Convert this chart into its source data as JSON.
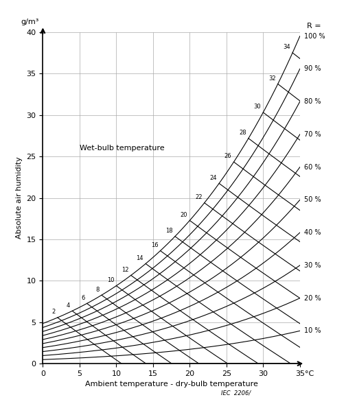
{
  "title": "",
  "xlabel": "Ambient temperature - dry-bulb temperature",
  "ylabel": "Absolute air humidity",
  "yunits": "g/m³",
  "xunits": "°C",
  "R_label": "R =",
  "wetbulb_label": "Wet-bulb temperature",
  "source": "IEC  2206/",
  "xmin": 0,
  "xmax": 35,
  "ymin": 0,
  "ymax": 40,
  "xticks": [
    0,
    5,
    10,
    15,
    20,
    25,
    30,
    35
  ],
  "yticks": [
    0,
    5,
    10,
    15,
    20,
    25,
    30,
    35,
    40
  ],
  "rh_levels": [
    10,
    20,
    30,
    40,
    50,
    60,
    70,
    80,
    90,
    100
  ],
  "wetbulb_temps": [
    2,
    4,
    6,
    8,
    10,
    12,
    14,
    16,
    18,
    20,
    22,
    24,
    26,
    28,
    30,
    32,
    34
  ],
  "line_color": "#000000",
  "bg_color": "#ffffff",
  "grid_color": "#aaaaaa"
}
